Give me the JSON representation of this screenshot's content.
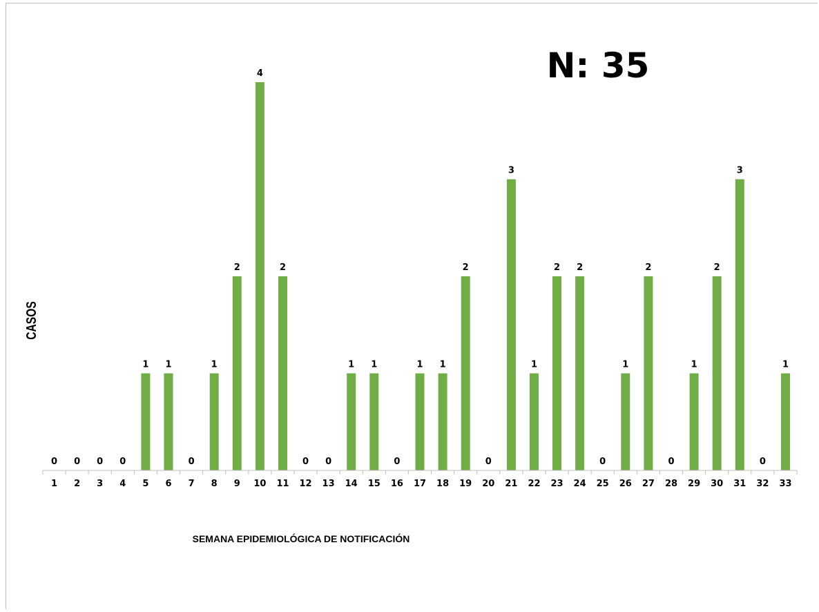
{
  "header": {
    "count_label": "N: 35"
  },
  "chart_data": {
    "type": "bar",
    "title": "",
    "xlabel": "SEMANA EPIDEMIOLÓGICA DE NOTIFICACIÓN",
    "ylabel": "CASOS",
    "categories": [
      "1",
      "2",
      "3",
      "4",
      "5",
      "6",
      "7",
      "8",
      "9",
      "10",
      "11",
      "12",
      "13",
      "14",
      "15",
      "16",
      "17",
      "18",
      "19",
      "20",
      "21",
      "22",
      "23",
      "24",
      "25",
      "26",
      "27",
      "28",
      "29",
      "30",
      "31",
      "32",
      "33"
    ],
    "values": [
      0,
      0,
      0,
      0,
      1,
      1,
      0,
      1,
      2,
      4,
      2,
      0,
      0,
      1,
      1,
      0,
      1,
      1,
      2,
      0,
      3,
      1,
      2,
      2,
      0,
      1,
      2,
      0,
      1,
      2,
      3,
      0,
      1
    ],
    "ylim": [
      0,
      4
    ],
    "grid": false,
    "legend": "none",
    "data_labels": true,
    "bar_color": "#70ad47"
  }
}
